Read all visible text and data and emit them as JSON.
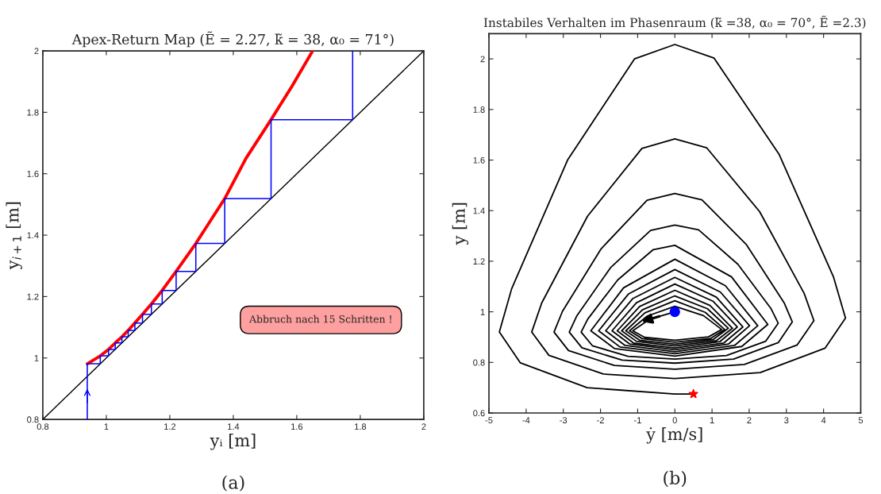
{
  "chart_data": [
    {
      "type": "line",
      "title": "Apex-Return Map (Ẽ = 2.27, k̃ = 38, α₀ = 71°)",
      "xlabel": "yᵢ [m]",
      "ylabel": "y$_{i+1}$ [m]",
      "xlim": [
        0.8,
        2
      ],
      "ylim": [
        0.8,
        2
      ],
      "xticks": [
        0.8,
        1,
        1.2,
        1.4,
        1.6,
        1.8,
        2
      ],
      "yticks": [
        0.8,
        1,
        1.2,
        1.4,
        1.6,
        1.8,
        2
      ],
      "series": [
        {
          "color": "#000000",
          "x": [
            0.8,
            2
          ],
          "values": [
            0.8,
            2
          ]
        },
        {
          "color": "#ff0000",
          "x": [
            0.94,
            0.981,
            1.007,
            1.028,
            1.049,
            1.069,
            1.09,
            1.114,
            1.142,
            1.176,
            1.22,
            1.282,
            1.373,
            1.44,
            1.519,
            1.585,
            1.65
          ],
          "values": [
            0.981,
            1.007,
            1.028,
            1.049,
            1.069,
            1.09,
            1.114,
            1.142,
            1.176,
            1.22,
            1.282,
            1.373,
            1.519,
            1.65,
            1.776,
            1.885,
            2.0
          ]
        },
        {
          "color": "#0000ff",
          "x": [
            0.94,
            0.94,
            0.981,
            0.981,
            1.007,
            1.007,
            1.028,
            1.028,
            1.049,
            1.049,
            1.069,
            1.069,
            1.09,
            1.09,
            1.114,
            1.114,
            1.142,
            1.142,
            1.176,
            1.176,
            1.22,
            1.22,
            1.282,
            1.282,
            1.373,
            1.373,
            1.519,
            1.519,
            1.776,
            1.776
          ],
          "values": [
            0.8,
            0.981,
            0.981,
            1.007,
            1.007,
            1.028,
            1.028,
            1.049,
            1.049,
            1.069,
            1.069,
            1.09,
            1.09,
            1.114,
            1.114,
            1.142,
            1.142,
            1.176,
            1.176,
            1.22,
            1.22,
            1.282,
            1.282,
            1.373,
            1.373,
            1.519,
            1.519,
            1.776,
            1.776,
            2.0
          ]
        }
      ],
      "annotations": [
        "Abbruch nach 15 Schritten !",
        "(a)"
      ]
    },
    {
      "type": "line",
      "title": "Instabiles Verhalten im Phasenraum (k̃ =38, α₀ = 70°, Ẽ =2.3)",
      "xlabel": "ẏ [m/s]",
      "ylabel": "y [m]",
      "xlim": [
        -5,
        5
      ],
      "ylim": [
        0.6,
        2.1
      ],
      "xticks": [
        -5,
        -4,
        -3,
        -2,
        -1,
        0,
        1,
        2,
        3,
        4,
        5
      ],
      "yticks": [
        0.6,
        0.8,
        1,
        1.2,
        1.4,
        1.6,
        1.8,
        2
      ],
      "series": [
        {
          "color": "#000000",
          "x": [
            0,
            -0.689,
            -1.13,
            -0.814,
            0,
            0.907,
            1.26,
            0.769,
            0,
            -0.744,
            -1.22,
            -0.878,
            0,
            0.965,
            1.34,
            0.817,
            0,
            -0.805,
            -1.32,
            -0.95,
            0,
            1.037,
            1.44,
            0.878,
            0,
            -0.872,
            -1.43,
            -1.03,
            0,
            1.116,
            1.55,
            0.946,
            0,
            -0.946,
            -1.55,
            -1.116,
            0,
            1.21,
            1.68,
            1.025,
            0,
            -1.031,
            -1.69,
            -1.217,
            0,
            1.318,
            1.83,
            1.116,
            0,
            -1.135,
            -1.86,
            -1.339,
            0,
            1.447,
            2.01,
            1.226,
            0,
            -1.251,
            -2.05,
            -1.476,
            0,
            1.606,
            2.23,
            1.36,
            0,
            -1.379,
            -2.26,
            -1.627,
            0,
            1.8,
            2.5,
            1.525,
            0,
            -0.58,
            -1.537,
            -2.344,
            -2.52,
            -2.218,
            -1.26,
            0,
            1.39,
            2.446,
            2.78,
            2.585,
            1.696,
            0.639,
            0,
            -0.653,
            -1.732,
            -2.641,
            -2.84,
            -2.499,
            -1.42,
            0,
            1.58,
            2.781,
            3.16,
            2.939,
            1.928,
            0.727,
            0,
            -0.748,
            -1.983,
            -3.023,
            -3.25,
            -2.86,
            -1.625,
            0,
            1.87,
            3.291,
            3.74,
            3.478,
            2.281,
            0.86,
            0,
            -0.886,
            -2.349,
            -3.581,
            -3.85,
            -3.388,
            -1.925,
            0,
            2.295,
            4.039,
            4.59,
            4.269,
            2.8,
            1.056,
            0,
            -1.086,
            -2.879,
            -4.39,
            -4.72,
            -4.154,
            -2.36,
            0,
            0.5
          ],
          "values": [
            1.0,
            0.97,
            0.925,
            0.899,
            0.888,
            0.901,
            0.93,
            0.985,
            1.022,
            0.983,
            0.925,
            0.894,
            0.88,
            0.895,
            0.93,
            0.998,
            1.044,
            0.996,
            0.925,
            0.888,
            0.872,
            0.891,
            0.935,
            1.012,
            1.063,
            1.008,
            0.925,
            0.883,
            0.865,
            0.886,
            0.935,
            1.025,
            1.085,
            1.021,
            0.925,
            0.877,
            0.857,
            0.882,
            0.94,
            1.042,
            1.11,
            1.036,
            0.925,
            0.873,
            0.85,
            0.877,
            0.94,
            1.058,
            1.136,
            1.052,
            0.925,
            0.867,
            0.842,
            0.873,
            0.945,
            1.078,
            1.167,
            1.07,
            0.925,
            0.861,
            0.834,
            0.867,
            0.945,
            1.103,
            1.208,
            1.095,
            0.925,
            0.855,
            0.825,
            0.863,
            0.95,
            1.138,
            1.263,
            1.246,
            1.126,
            0.971,
            0.92,
            0.866,
            0.824,
            0.813,
            0.827,
            0.884,
            0.955,
            1.013,
            1.188,
            1.324,
            1.343,
            1.322,
            1.174,
            0.983,
            0.92,
            0.858,
            0.809,
            0.797,
            0.813,
            0.878,
            0.96,
            1.036,
            1.265,
            1.443,
            1.468,
            1.441,
            1.249,
            1.002,
            0.92,
            0.847,
            0.788,
            0.773,
            0.792,
            0.869,
            0.965,
            1.073,
            1.396,
            1.648,
            1.684,
            1.646,
            1.378,
            1.035,
            0.92,
            0.828,
            0.754,
            0.736,
            0.76,
            0.856,
            0.975,
            1.137,
            1.624,
            2.003,
            2.057,
            2.0,
            1.602,
            1.091,
            0.92,
            0.798,
            0.7,
            0.675,
            0.675
          ]
        },
        {
          "type": "scatter",
          "color": "#0000ff",
          "marker": "circle",
          "x": [
            0
          ],
          "values": [
            1.0
          ]
        },
        {
          "type": "scatter",
          "color": "#ff0000",
          "marker": "star",
          "x": [
            0.5
          ],
          "values": [
            0.675
          ]
        }
      ],
      "annotations": [
        "(b)"
      ]
    }
  ]
}
